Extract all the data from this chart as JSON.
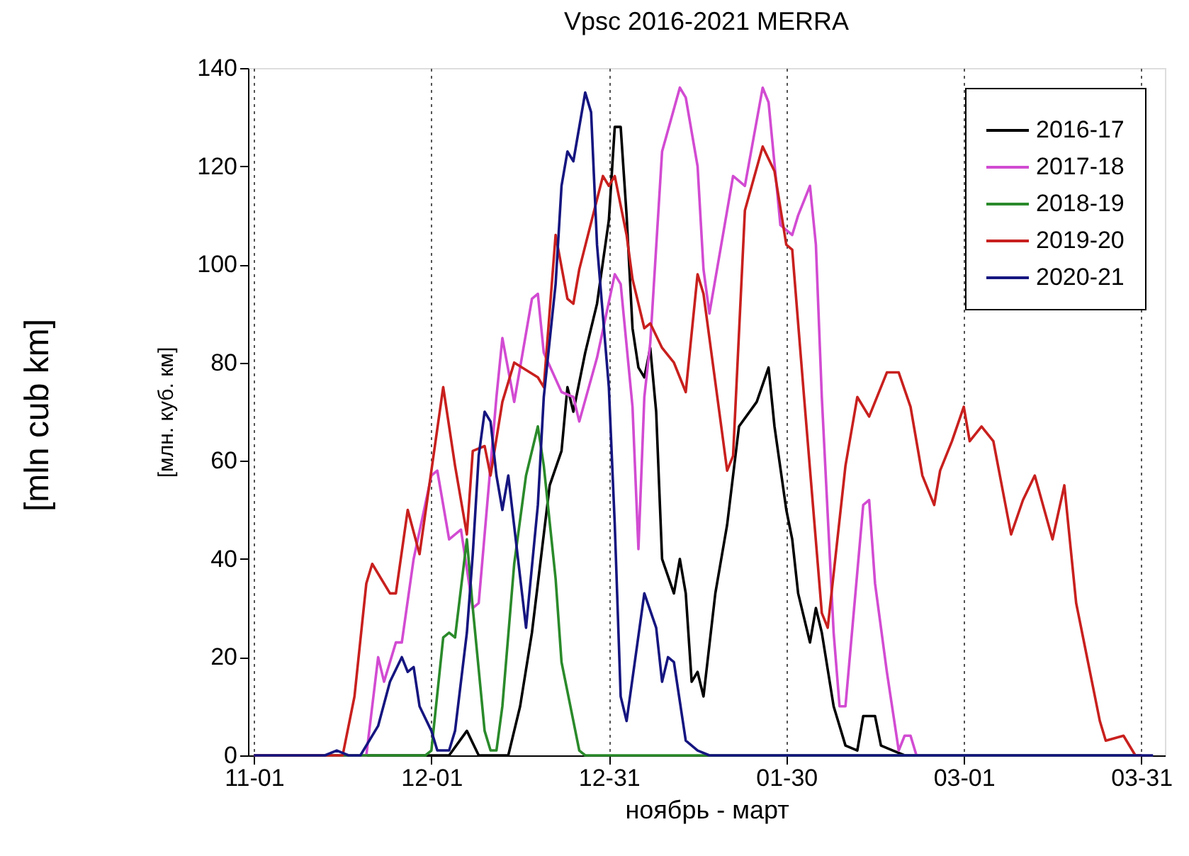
{
  "chart_data": {
    "type": "line",
    "title": "Vpsc 2016-2021 MERRA",
    "xlabel": "ноябрь - март",
    "ylabel": "[млн. куб. км]",
    "annotations": [
      "[mln cub km]"
    ],
    "xlim": [
      "2016-10-31",
      "2017-04-04"
    ],
    "xticks": [
      {
        "value": "2016-11-01",
        "label": "11-01"
      },
      {
        "value": "2016-12-01",
        "label": "12-01"
      },
      {
        "value": "2016-12-31",
        "label": "12-31"
      },
      {
        "value": "2017-01-30",
        "label": "01-30"
      },
      {
        "value": "2017-03-01",
        "label": "03-01"
      },
      {
        "value": "2017-03-31",
        "label": "03-31"
      }
    ],
    "ylim": [
      0,
      140
    ],
    "yticks": [
      0,
      20,
      40,
      60,
      80,
      100,
      120,
      140
    ],
    "grid": "x",
    "legend": "top right",
    "series": [
      {
        "name": "2016-17",
        "color": "#000000",
        "x": [
          "2016-11-01",
          "2016-12-04",
          "2016-12-07",
          "2016-12-09",
          "2016-12-14",
          "2016-12-16",
          "2016-12-18",
          "2016-12-20",
          "2016-12-21",
          "2016-12-23",
          "2016-12-24",
          "2016-12-25",
          "2016-12-27",
          "2016-12-29",
          "2016-12-31",
          "2017-01-01",
          "2017-01-02",
          "2017-01-03",
          "2017-01-04",
          "2017-01-05",
          "2017-01-06",
          "2017-01-07",
          "2017-01-08",
          "2017-01-09",
          "2017-01-11",
          "2017-01-12",
          "2017-01-13",
          "2017-01-14",
          "2017-01-15",
          "2017-01-16",
          "2017-01-18",
          "2017-01-20",
          "2017-01-22",
          "2017-01-25",
          "2017-01-27",
          "2017-01-28",
          "2017-01-30",
          "2017-01-31",
          "2017-02-01",
          "2017-02-03",
          "2017-02-04",
          "2017-02-05",
          "2017-02-07",
          "2017-02-09",
          "2017-02-11",
          "2017-02-12",
          "2017-02-14",
          "2017-02-15",
          "2017-02-17",
          "2017-02-19",
          "2017-03-31"
        ],
        "values": [
          0,
          0,
          5,
          0,
          0,
          10,
          25,
          45,
          55,
          62,
          75,
          70,
          82,
          92,
          109,
          128,
          128,
          110,
          87,
          79,
          77,
          83,
          70,
          40,
          33,
          40,
          33,
          15,
          17,
          12,
          33,
          47,
          67,
          72,
          79,
          67,
          50,
          44,
          33,
          23,
          30,
          25,
          10,
          2,
          1,
          8,
          8,
          2,
          1,
          0,
          0
        ]
      },
      {
        "name": "2017-18",
        "color": "#d24bd2",
        "x": [
          "2016-11-01",
          "2016-11-20",
          "2016-11-22",
          "2016-11-23",
          "2016-11-25",
          "2016-11-26",
          "2016-11-28",
          "2016-12-01",
          "2016-12-02",
          "2016-12-04",
          "2016-12-06",
          "2016-12-08",
          "2016-12-09",
          "2016-12-12",
          "2016-12-13",
          "2016-12-15",
          "2016-12-18",
          "2016-12-19",
          "2016-12-20",
          "2016-12-23",
          "2016-12-25",
          "2016-12-26",
          "2016-12-29",
          "2017-01-01",
          "2017-01-02",
          "2017-01-04",
          "2017-01-05",
          "2017-01-06",
          "2017-01-07",
          "2017-01-09",
          "2017-01-12",
          "2017-01-13",
          "2017-01-15",
          "2017-01-16",
          "2017-01-17",
          "2017-01-21",
          "2017-01-23",
          "2017-01-26",
          "2017-01-27",
          "2017-01-29",
          "2017-01-31",
          "2017-02-01",
          "2017-02-03",
          "2017-02-04",
          "2017-02-05",
          "2017-02-07",
          "2017-02-08",
          "2017-02-09",
          "2017-02-12",
          "2017-02-13",
          "2017-02-14",
          "2017-02-16",
          "2017-02-18",
          "2017-02-19",
          "2017-02-20",
          "2017-02-21",
          "2017-03-31"
        ],
        "values": [
          0,
          0,
          20,
          15,
          23,
          23,
          40,
          57,
          58,
          44,
          46,
          30,
          31,
          73,
          85,
          72,
          93,
          94,
          82,
          74,
          73,
          68,
          81,
          98,
          96,
          71,
          42,
          73,
          84,
          123,
          136,
          134,
          120,
          99,
          90,
          118,
          116,
          136,
          133,
          108,
          106,
          110,
          116,
          104,
          73,
          25,
          10,
          10,
          51,
          52,
          35,
          17,
          1,
          4,
          4,
          0,
          0
        ]
      },
      {
        "name": "2018-19",
        "color": "#2a8a2a",
        "x": [
          "2016-11-01",
          "2016-11-30",
          "2016-12-01",
          "2016-12-03",
          "2016-12-04",
          "2016-12-05",
          "2016-12-07",
          "2016-12-08",
          "2016-12-10",
          "2016-12-11",
          "2016-12-12",
          "2016-12-13",
          "2016-12-15",
          "2016-12-17",
          "2016-12-19",
          "2016-12-20",
          "2016-12-22",
          "2016-12-23",
          "2016-12-24",
          "2016-12-26",
          "2016-12-27",
          "2017-03-31"
        ],
        "values": [
          0,
          0,
          1,
          24,
          25,
          24,
          44,
          30,
          5,
          1,
          1,
          10,
          39,
          57,
          67,
          59,
          36,
          19,
          13,
          1,
          0,
          0
        ]
      },
      {
        "name": "2019-20",
        "color": "#c8201e",
        "x": [
          "2016-11-01",
          "2016-11-16",
          "2016-11-18",
          "2016-11-20",
          "2016-11-21",
          "2016-11-24",
          "2016-11-25",
          "2016-11-27",
          "2016-11-29",
          "2016-12-01",
          "2016-12-03",
          "2016-12-05",
          "2016-12-07",
          "2016-12-08",
          "2016-12-10",
          "2016-12-11",
          "2016-12-13",
          "2016-12-15",
          "2016-12-19",
          "2016-12-20",
          "2016-12-22",
          "2016-12-24",
          "2016-12-25",
          "2016-12-26",
          "2016-12-30",
          "2016-12-31",
          "2017-01-01",
          "2017-01-03",
          "2017-01-04",
          "2017-01-06",
          "2017-01-07",
          "2017-01-09",
          "2017-01-11",
          "2017-01-13",
          "2017-01-15",
          "2017-01-16",
          "2017-01-20",
          "2017-01-21",
          "2017-01-23",
          "2017-01-26",
          "2017-01-28",
          "2017-01-30",
          "2017-01-31",
          "2017-02-02",
          "2017-02-05",
          "2017-02-06",
          "2017-02-09",
          "2017-02-11",
          "2017-02-13",
          "2017-02-16",
          "2017-02-18",
          "2017-02-20",
          "2017-02-22",
          "2017-02-24",
          "2017-02-25",
          "2017-02-27",
          "2017-03-01",
          "2017-03-02",
          "2017-03-04",
          "2017-03-06",
          "2017-03-09",
          "2017-03-11",
          "2017-03-13",
          "2017-03-16",
          "2017-03-18",
          "2017-03-20",
          "2017-03-24",
          "2017-03-25",
          "2017-03-28",
          "2017-03-30",
          "2017-03-31"
        ],
        "values": [
          0,
          0,
          12,
          35,
          39,
          33,
          33,
          50,
          41,
          58,
          75,
          59,
          45,
          62,
          63,
          57,
          72,
          80,
          77,
          75,
          106,
          93,
          92,
          99,
          118,
          116,
          118,
          106,
          97,
          87,
          88,
          83,
          80,
          74,
          98,
          94,
          58,
          61,
          111,
          124,
          119,
          104,
          103,
          73,
          29,
          26,
          59,
          73,
          69,
          78,
          78,
          71,
          57,
          51,
          58,
          64,
          71,
          64,
          67,
          64,
          45,
          52,
          57,
          44,
          55,
          31,
          7,
          3,
          4,
          0,
          0
        ]
      },
      {
        "name": "2020-21",
        "color": "#151580",
        "x": [
          "2016-11-01",
          "2016-11-13",
          "2016-11-15",
          "2016-11-17",
          "2016-11-19",
          "2016-11-22",
          "2016-11-24",
          "2016-11-26",
          "2016-11-27",
          "2016-11-28",
          "2016-11-29",
          "2016-12-01",
          "2016-12-02",
          "2016-12-04",
          "2016-12-05",
          "2016-12-07",
          "2016-12-08",
          "2016-12-09",
          "2016-12-10",
          "2016-12-11",
          "2016-12-12",
          "2016-12-13",
          "2016-12-14",
          "2016-12-17",
          "2016-12-19",
          "2016-12-20",
          "2016-12-22",
          "2016-12-23",
          "2016-12-24",
          "2016-12-25",
          "2016-12-27",
          "2016-12-28",
          "2016-12-29",
          "2016-12-31",
          "2017-01-01",
          "2017-01-02",
          "2017-01-03",
          "2017-01-06",
          "2017-01-08",
          "2017-01-09",
          "2017-01-10",
          "2017-01-11",
          "2017-01-13",
          "2017-01-15",
          "2017-01-17",
          "2017-04-02"
        ],
        "values": [
          0,
          0,
          1,
          0,
          0,
          6,
          15,
          20,
          17,
          18,
          10,
          5,
          1,
          1,
          5,
          25,
          41,
          61,
          70,
          68,
          57,
          50,
          57,
          26,
          51,
          73,
          96,
          116,
          123,
          121,
          135,
          131,
          104,
          75,
          47,
          12,
          7,
          33,
          26,
          15,
          20,
          19,
          3,
          1,
          0,
          0
        ]
      }
    ]
  }
}
